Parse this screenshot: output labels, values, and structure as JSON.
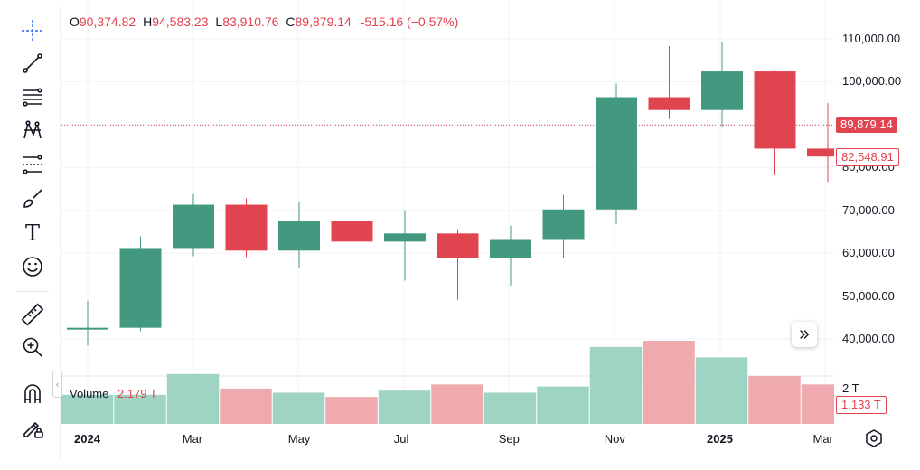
{
  "ohlc": {
    "o_label": "O",
    "o_value": "90,374.82",
    "h_label": "H",
    "h_value": "94,583.23",
    "l_label": "L",
    "l_value": "83,910.76",
    "c_label": "C",
    "c_value": "89,879.14",
    "change": "-515.16 (−0.57%)"
  },
  "toolbar": {
    "icons": [
      "crosshair-icon",
      "trend-line-icon",
      "fib-retracement-icon",
      "pattern-icon",
      "prediction-icon",
      "brush-icon",
      "text-icon",
      "emoji-icon",
      "ruler-icon",
      "zoom-in-icon",
      "magnet-icon",
      "lock-drawing-icon"
    ],
    "text_tool_glyph": "T"
  },
  "price_axis": {
    "ticks": [
      "110,000.00",
      "100,000.00",
      "90,000.00",
      "80,000.00",
      "70,000.00",
      "60,000.00",
      "50,000.00",
      "40,000.00"
    ],
    "current_price": "89,879.14",
    "prev_close_price": "82,548.91",
    "volume_axis_tick": "2 T",
    "volume_current": "1.133 T"
  },
  "volume": {
    "label": "Volume",
    "value": "2.179 T"
  },
  "time_axis": [
    {
      "label": "2024",
      "bold": true
    },
    {
      "label": "Mar",
      "bold": false
    },
    {
      "label": "May",
      "bold": false
    },
    {
      "label": "Jul",
      "bold": false
    },
    {
      "label": "Sep",
      "bold": false
    },
    {
      "label": "Nov",
      "bold": false
    },
    {
      "label": "2025",
      "bold": true
    },
    {
      "label": "Mar",
      "bold": false
    }
  ],
  "colors": {
    "up": "#43997f",
    "down": "#e0444f",
    "up_vol": "#9fd3c3",
    "down_vol": "#eeaaae",
    "grid": "#f0f3fa"
  },
  "chart_data": {
    "type": "candlestick",
    "y_range": [
      35000,
      115000
    ],
    "candles": [
      {
        "period": "2024-01",
        "open": 42300,
        "high": 48900,
        "low": 38500,
        "close": 42600,
        "volume": 0.7
      },
      {
        "period": "2024-02",
        "open": 42600,
        "high": 63900,
        "low": 41800,
        "close": 61200,
        "volume": 0.7
      },
      {
        "period": "2024-03",
        "open": 61200,
        "high": 73800,
        "low": 59300,
        "close": 71300,
        "volume": 1.2
      },
      {
        "period": "2024-04",
        "open": 71300,
        "high": 72800,
        "low": 59100,
        "close": 60600,
        "volume": 0.85
      },
      {
        "period": "2024-05",
        "open": 60600,
        "high": 71900,
        "low": 56500,
        "close": 67500,
        "volume": 0.75
      },
      {
        "period": "2024-06",
        "open": 67500,
        "high": 71900,
        "low": 58400,
        "close": 62700,
        "volume": 0.65
      },
      {
        "period": "2024-07",
        "open": 62700,
        "high": 70000,
        "low": 53600,
        "close": 64600,
        "volume": 0.8
      },
      {
        "period": "2024-08",
        "open": 64600,
        "high": 65600,
        "low": 49100,
        "close": 58900,
        "volume": 0.95
      },
      {
        "period": "2024-09",
        "open": 58900,
        "high": 66400,
        "low": 52500,
        "close": 63300,
        "volume": 0.75
      },
      {
        "period": "2024-10",
        "open": 63300,
        "high": 73600,
        "low": 58900,
        "close": 70200,
        "volume": 0.9
      },
      {
        "period": "2024-11",
        "open": 70200,
        "high": 99600,
        "low": 66800,
        "close": 96400,
        "volume": 1.85
      },
      {
        "period": "2024-12",
        "open": 96400,
        "high": 108300,
        "low": 91300,
        "close": 93400,
        "volume": 2.0
      },
      {
        "period": "2025-01",
        "open": 93400,
        "high": 109300,
        "low": 89300,
        "close": 102400,
        "volume": 1.6
      },
      {
        "period": "2025-02",
        "open": 102400,
        "high": 102700,
        "low": 78200,
        "close": 84400,
        "volume": 1.15
      },
      {
        "period": "2025-03",
        "open": 84400,
        "high": 95000,
        "low": 76600,
        "close": 82548.91,
        "volume": 0.95
      }
    ]
  }
}
